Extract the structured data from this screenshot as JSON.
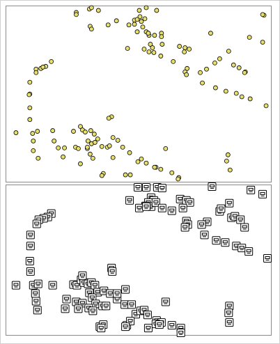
{
  "chart_data": [
    {
      "type": "scatter",
      "marker": "circle",
      "color": "#e6df6e",
      "xlim": [
        0,
        382
      ],
      "ylim": [
        254,
        0
      ],
      "x": [
        101,
        101,
        120,
        123,
        133,
        147,
        159,
        121,
        123,
        177,
        185,
        185,
        192,
        202,
        217,
        195,
        200,
        197,
        202,
        206,
        214,
        224,
        224,
        189,
        208,
        211,
        206,
        199,
        213,
        223,
        225,
        175,
        250,
        258,
        264,
        257,
        241,
        295,
        351,
        370,
        372,
        370,
        321,
        308,
        301,
        328,
        336,
        345,
        344,
        261,
        258,
        260,
        280,
        289,
        283,
        302,
        317,
        332,
        340,
        352,
        375,
        65,
        57,
        50,
        53,
        43,
        43,
        34,
        34,
        33,
        34,
        34,
        38,
        45,
        14,
        39,
        39,
        46,
        67,
        69,
        75,
        84,
        82,
        97,
        107,
        110,
        114,
        122,
        127,
        118,
        123,
        128,
        132,
        100,
        104,
        117,
        121,
        125,
        107,
        152,
        148,
        154,
        138,
        146,
        149,
        161,
        168,
        178,
        190,
        195,
        202,
        216,
        214,
        223,
        239,
        249,
        248,
        172,
        179,
        140,
        138,
        230,
        154,
        189,
        193,
        205,
        320,
        318,
        323,
        117
      ],
      "values": [
        9,
        12,
        4,
        2,
        6,
        27,
        21,
        29,
        33,
        27,
        20,
        26,
        6,
        2,
        6,
        22,
        18,
        30,
        37,
        42,
        42,
        39,
        44,
        37,
        55,
        60,
        66,
        62,
        67,
        72,
        55,
        61,
        58,
        60,
        62,
        66,
        80,
        39,
        45,
        52,
        13,
        12,
        65,
        76,
        82,
        85,
        89,
        95,
        96,
        90,
        95,
        99,
        96,
        91,
        111,
        118,
        123,
        126,
        131,
        134,
        144,
        80,
        87,
        90,
        88,
        91,
        96,
        110,
        127,
        128,
        147,
        164,
        184,
        181,
        183,
        195,
        209,
        220,
        180,
        195,
        205,
        205,
        218,
        181,
        174,
        179,
        182,
        180,
        185,
        195,
        199,
        197,
        192,
        204,
        206,
        206,
        214,
        220,
        228,
        160,
        162,
        190,
        203,
        204,
        202,
        194,
        204,
        212,
        225,
        221,
        227,
        233,
        233,
        236,
        241,
        248,
        250,
        244,
        244,
        242,
        245,
        206,
        219,
        19,
        15,
        39,
        215,
        224,
        237,
        204
      ]
    },
    {
      "type": "scatter",
      "marker": "icon",
      "color": "#ffffff",
      "xlim": [
        0,
        382
      ],
      "ylim": [
        217,
        0
      ],
      "x": [
        190,
        202,
        218,
        225,
        297,
        353,
        370,
        178,
        209,
        213,
        205,
        201,
        209,
        216,
        225,
        192,
        202,
        251,
        260,
        265,
        255,
        239,
        322,
        308,
        310,
        65,
        60,
        54,
        47,
        44,
        35,
        35,
        34,
        35,
        290,
        282,
        260,
        262,
        258,
        325,
        330,
        338,
        344,
        286,
        303,
        316,
        332,
        340,
        350,
        377,
        14,
        39,
        46,
        67,
        42,
        43,
        45,
        97,
        102,
        108,
        112,
        118,
        123,
        110,
        128,
        120,
        132,
        124,
        129,
        139,
        144,
        152,
        153,
        141,
        150,
        160,
        172,
        87,
        85,
        101,
        110,
        104,
        119,
        125,
        171,
        181,
        160,
        187,
        194,
        199,
        204,
        217,
        224,
        230,
        239,
        252,
        252,
        135,
        140,
        174,
        179,
        172,
        205,
        216,
        221,
        322,
        321,
        322,
        137
      ],
      "values": [
        3,
        3,
        3,
        4,
        2,
        7,
        13,
        22,
        18,
        22,
        25,
        30,
        31,
        25,
        33,
        33,
        31,
        20,
        22,
        25,
        33,
        37,
        26,
        38,
        34,
        41,
        46,
        48,
        50,
        56,
        72,
        88,
        110,
        125,
        53,
        57,
        52,
        57,
        61,
        47,
        45,
        50,
        61,
        72,
        80,
        83,
        88,
        91,
        96,
        106,
        145,
        145,
        143,
        145,
        157,
        168,
        181,
        144,
        145,
        137,
        141,
        143,
        141,
        131,
        145,
        156,
        155,
        163,
        172,
        175,
        175,
        120,
        125,
        153,
        157,
        165,
        151,
        165,
        179,
        169,
        171,
        179,
        178,
        182,
        173,
        173,
        157,
        187,
        182,
        181,
        188,
        196,
        199,
        169,
        203,
        207,
        214,
        205,
        202,
        203,
        197,
        205,
        207,
        201,
        202,
        175,
        185,
        199,
        207
      ]
    }
  ]
}
